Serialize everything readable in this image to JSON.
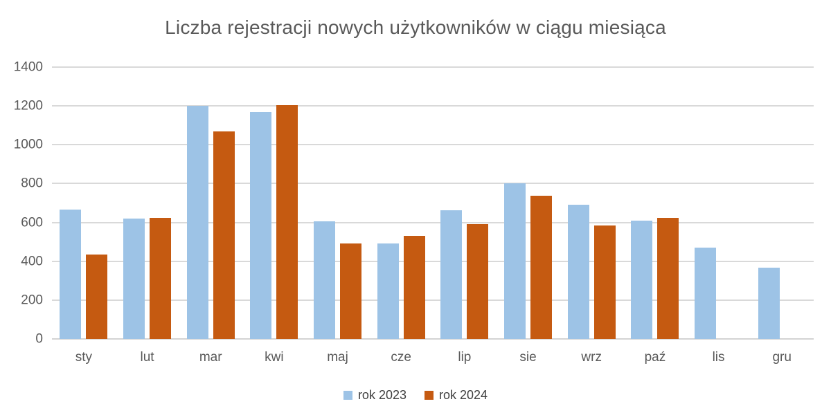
{
  "chart_data": {
    "type": "bar",
    "title": "Liczba rejestracji nowych użytkowników w ciągu miesiąca",
    "categories": [
      "sty",
      "lut",
      "mar",
      "kwi",
      "maj",
      "cze",
      "lip",
      "sie",
      "wrz",
      "paź",
      "lis",
      "gru"
    ],
    "series": [
      {
        "name": "rok 2023",
        "color": "#9DC3E6",
        "values": [
          665,
          620,
          1200,
          1170,
          605,
          492,
          662,
          803,
          690,
          610,
          470,
          366
        ]
      },
      {
        "name": "rok 2024",
        "color": "#C55A11",
        "values": [
          436,
          624,
          1067,
          1205,
          490,
          531,
          591,
          737,
          584,
          622,
          null,
          null
        ]
      }
    ],
    "xlabel": "",
    "ylabel": "",
    "ylim": [
      0,
      1400
    ],
    "yticks": [
      0,
      200,
      400,
      600,
      800,
      1000,
      1200,
      1400
    ],
    "grid": true,
    "legend_position": "bottom"
  },
  "colors": {
    "series_2023": "#9DC3E6",
    "series_2024": "#C55A11",
    "axis_text": "#595959",
    "legend_text": "#3F3F3F",
    "gridline": "#D9D9D9",
    "background": "#FFFFFF"
  }
}
